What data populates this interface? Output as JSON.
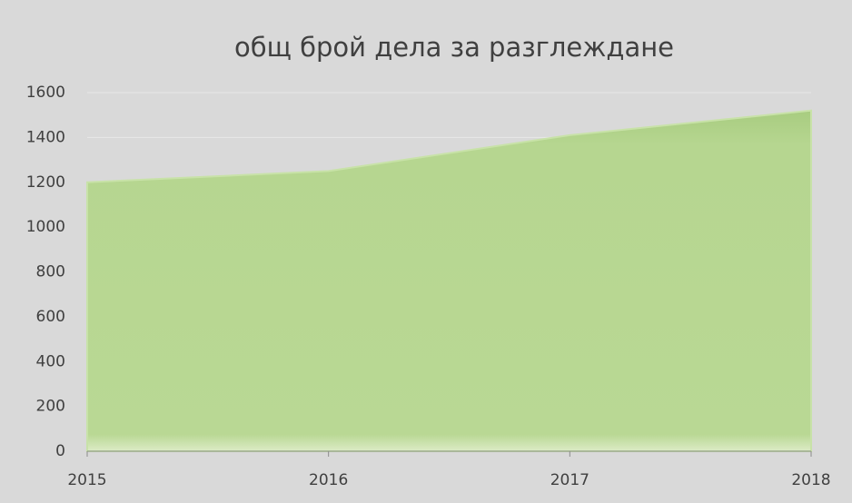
{
  "chart_data": {
    "type": "area",
    "title": "общ брой дела за разглеждане",
    "categories": [
      "2015",
      "2016",
      "2017",
      "2018"
    ],
    "values": [
      1200,
      1250,
      1410,
      1520
    ],
    "color": "#b5d58f",
    "ylim": [
      0,
      1600
    ],
    "yticks": [
      0,
      200,
      400,
      600,
      800,
      1000,
      1200,
      1400,
      1600
    ],
    "grid": true
  }
}
